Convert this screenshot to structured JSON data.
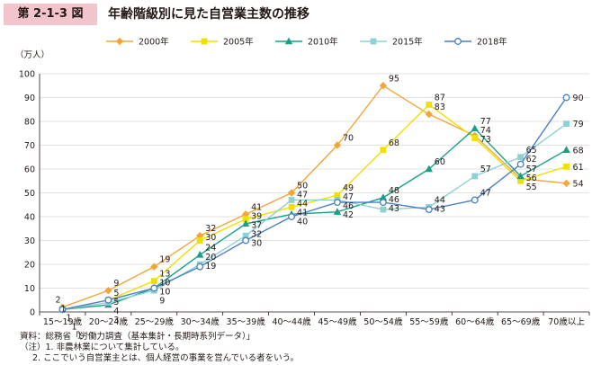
{
  "figure": {
    "number": "第 2-1-3 図",
    "title": "年齢階級別に見た自営業主数の推移"
  },
  "chart_data": {
    "type": "line",
    "title": "年齢階級別に見た自営業主数の推移",
    "ylabel": "（万人）",
    "xlabel": "",
    "ylim": [
      0,
      100
    ],
    "yticks": [
      "0",
      "10",
      "20",
      "30",
      "40",
      "50",
      "60",
      "70",
      "80",
      "90",
      "100"
    ],
    "grid": true,
    "legend": "top",
    "categories": [
      "15～19歳",
      "20～24歳",
      "25～29歳",
      "30～34歳",
      "35～39歳",
      "40～44歳",
      "45～49歳",
      "50～54歳",
      "55～59歳",
      "60～64歳",
      "65～69歳",
      "70歳以上"
    ],
    "series": [
      {
        "name": "2000年",
        "color": "#f4a53a",
        "marker": "diamond",
        "values": [
          2,
          9,
          19,
          32,
          41,
          50,
          70,
          95,
          83,
          74,
          56,
          54
        ]
      },
      {
        "name": "2005年",
        "color": "#f1df00",
        "marker": "square",
        "values": [
          1,
          5,
          13,
          30,
          39,
          44,
          49,
          68,
          87,
          73,
          55,
          61
        ]
      },
      {
        "name": "2010年",
        "color": "#16a085",
        "marker": "triangle",
        "values": [
          1,
          3,
          10,
          24,
          37,
          41,
          42,
          48,
          60,
          77,
          57,
          68
        ]
      },
      {
        "name": "2015年",
        "color": "#8fd0d4",
        "marker": "square",
        "values": [
          1,
          4,
          9,
          20,
          32,
          47,
          47,
          43,
          44,
          57,
          65,
          79
        ]
      },
      {
        "name": "2018年",
        "color": "#4a7fc1",
        "marker": "circle",
        "values": [
          1,
          5,
          10,
          19,
          30,
          40,
          46,
          46,
          43,
          47,
          62,
          90
        ]
      }
    ],
    "data_labels": [
      {
        "text": "1",
        "series": 2,
        "index": 0
      },
      {
        "text": "2",
        "series": 0,
        "index": 0
      },
      {
        "text": "1",
        "series": 4,
        "index": 0
      },
      {
        "text": "1",
        "series": 1,
        "index": 0
      },
      {
        "text": "1",
        "series": 3,
        "index": 0
      },
      {
        "text": "9",
        "series": 0,
        "index": 1
      },
      {
        "text": "5",
        "series": 1,
        "index": 1
      },
      {
        "text": "5",
        "series": 4,
        "index": 1
      },
      {
        "text": "4",
        "series": 3,
        "index": 1
      },
      {
        "text": "3",
        "series": 2,
        "index": 1
      },
      {
        "text": "19",
        "series": 0,
        "index": 2
      },
      {
        "text": "13",
        "series": 1,
        "index": 2
      },
      {
        "text": "10",
        "series": 2,
        "index": 2
      },
      {
        "text": "10",
        "series": 4,
        "index": 2
      },
      {
        "text": "9",
        "series": 3,
        "index": 2
      },
      {
        "text": "32",
        "series": 0,
        "index": 3
      },
      {
        "text": "30",
        "series": 1,
        "index": 3
      },
      {
        "text": "24",
        "series": 2,
        "index": 3
      },
      {
        "text": "20",
        "series": 3,
        "index": 3
      },
      {
        "text": "19",
        "series": 4,
        "index": 3
      },
      {
        "text": "41",
        "series": 0,
        "index": 4
      },
      {
        "text": "39",
        "series": 1,
        "index": 4
      },
      {
        "text": "37",
        "series": 2,
        "index": 4
      },
      {
        "text": "32",
        "series": 3,
        "index": 4
      },
      {
        "text": "30",
        "series": 4,
        "index": 4
      },
      {
        "text": "50",
        "series": 0,
        "index": 5
      },
      {
        "text": "47",
        "series": 3,
        "index": 5
      },
      {
        "text": "44",
        "series": 1,
        "index": 5
      },
      {
        "text": "41",
        "series": 2,
        "index": 5
      },
      {
        "text": "40",
        "series": 4,
        "index": 5
      },
      {
        "text": "70",
        "series": 0,
        "index": 6
      },
      {
        "text": "49",
        "series": 1,
        "index": 6
      },
      {
        "text": "47",
        "series": 3,
        "index": 6
      },
      {
        "text": "46",
        "series": 4,
        "index": 6
      },
      {
        "text": "42",
        "series": 2,
        "index": 6
      },
      {
        "text": "95",
        "series": 0,
        "index": 7
      },
      {
        "text": "68",
        "series": 1,
        "index": 7
      },
      {
        "text": "48",
        "series": 2,
        "index": 7
      },
      {
        "text": "46",
        "series": 4,
        "index": 7
      },
      {
        "text": "43",
        "series": 3,
        "index": 7
      },
      {
        "text": "87",
        "series": 1,
        "index": 8
      },
      {
        "text": "83",
        "series": 0,
        "index": 8
      },
      {
        "text": "60",
        "series": 2,
        "index": 8
      },
      {
        "text": "44",
        "series": 3,
        "index": 8
      },
      {
        "text": "43",
        "series": 4,
        "index": 8
      },
      {
        "text": "77",
        "series": 2,
        "index": 9
      },
      {
        "text": "74",
        "series": 0,
        "index": 9
      },
      {
        "text": "73",
        "series": 1,
        "index": 9
      },
      {
        "text": "57",
        "series": 3,
        "index": 9
      },
      {
        "text": "47",
        "series": 4,
        "index": 9
      },
      {
        "text": "65",
        "series": 3,
        "index": 10
      },
      {
        "text": "62",
        "series": 4,
        "index": 10
      },
      {
        "text": "57",
        "series": 2,
        "index": 10
      },
      {
        "text": "56",
        "series": 0,
        "index": 10
      },
      {
        "text": "55",
        "series": 1,
        "index": 10
      },
      {
        "text": "90",
        "series": 4,
        "index": 11
      },
      {
        "text": "79",
        "series": 3,
        "index": 11
      },
      {
        "text": "68",
        "series": 2,
        "index": 11
      },
      {
        "text": "61",
        "series": 1,
        "index": 11
      },
      {
        "text": "54",
        "series": 0,
        "index": 11
      }
    ]
  },
  "notes": [
    "資料：総務省「労働力調査（基本集計・長期時系列データ）」",
    "（注）1. 非農林業について集計している。",
    "2. ここでいう自営業主とは、個人経営の事業を営んでいる者をいう。"
  ]
}
